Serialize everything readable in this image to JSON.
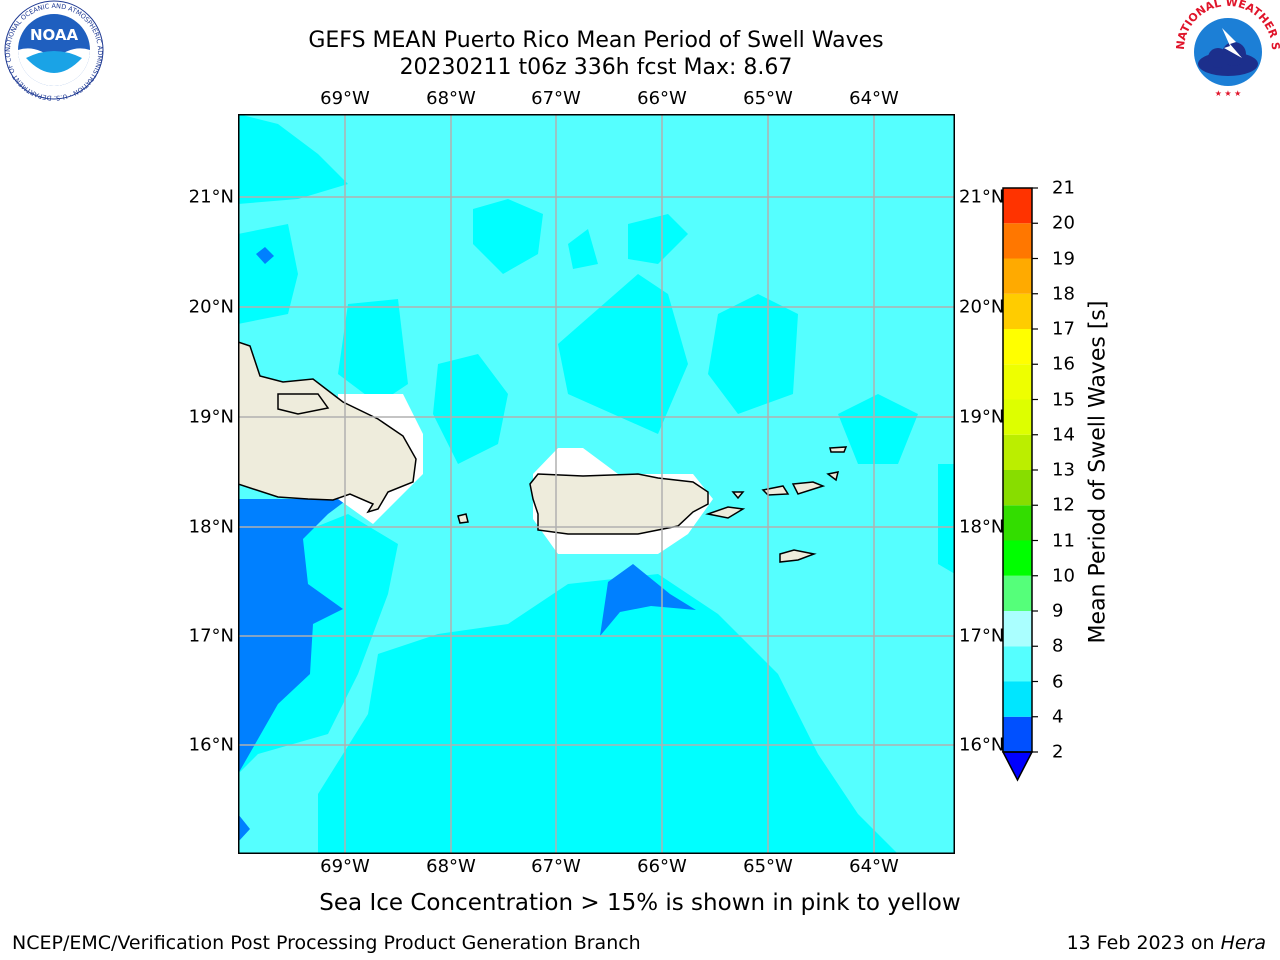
{
  "title_line1": "GEFS MEAN Puerto Rico Mean Period of Swell Waves",
  "title_line2": "20230211 t06z 336h fcst   Max: 8.67",
  "lon_labels": [
    "69°W",
    "68°W",
    "67°W",
    "66°W",
    "65°W",
    "64°W"
  ],
  "lat_labels": [
    "21°N",
    "20°N",
    "19°N",
    "18°N",
    "17°N",
    "16°N"
  ],
  "colorbar": {
    "title": "Mean Period of Swell Waves [s]",
    "labels": [
      "2",
      "4",
      "6",
      "8",
      "9",
      "10",
      "11",
      "12",
      "13",
      "14",
      "15",
      "16",
      "17",
      "18",
      "19",
      "20",
      "21"
    ],
    "colors": [
      "#0050ff",
      "#00e6ff",
      "#55ffff",
      "#aaffff",
      "#55ff7a",
      "#00ff00",
      "#33dd00",
      "#88dd00",
      "#bbee00",
      "#ddff00",
      "#eeff00",
      "#ffff00",
      "#ffcc00",
      "#ffaa00",
      "#ff7700",
      "#ff3300",
      "#ff0000"
    ],
    "under_color": "#0000ff"
  },
  "map_colors": {
    "level_6_8": "#55ffff",
    "level_4_6": "#00ffff",
    "level_2_4": "#0080ff",
    "land": "#eeecdc",
    "grid": "#b0b0b0"
  },
  "sea_ice_note": "Sea Ice Concentration > 15% is shown in pink to yellow",
  "footer_left": "NCEP/EMC/Verification Post Processing Product Generation Branch",
  "footer_right_prefix": "13 Feb 2023 on ",
  "footer_right_host": "Hera",
  "logo_left": {
    "text": "NOAA",
    "ring_text": "NATIONAL OCEANIC AND ATMOSPHERIC ADMINISTRATION · U.S. DEPARTMENT OF COMMERCE"
  },
  "logo_right": {
    "ring_text": "NATIONAL WEATHER SERVICE"
  }
}
